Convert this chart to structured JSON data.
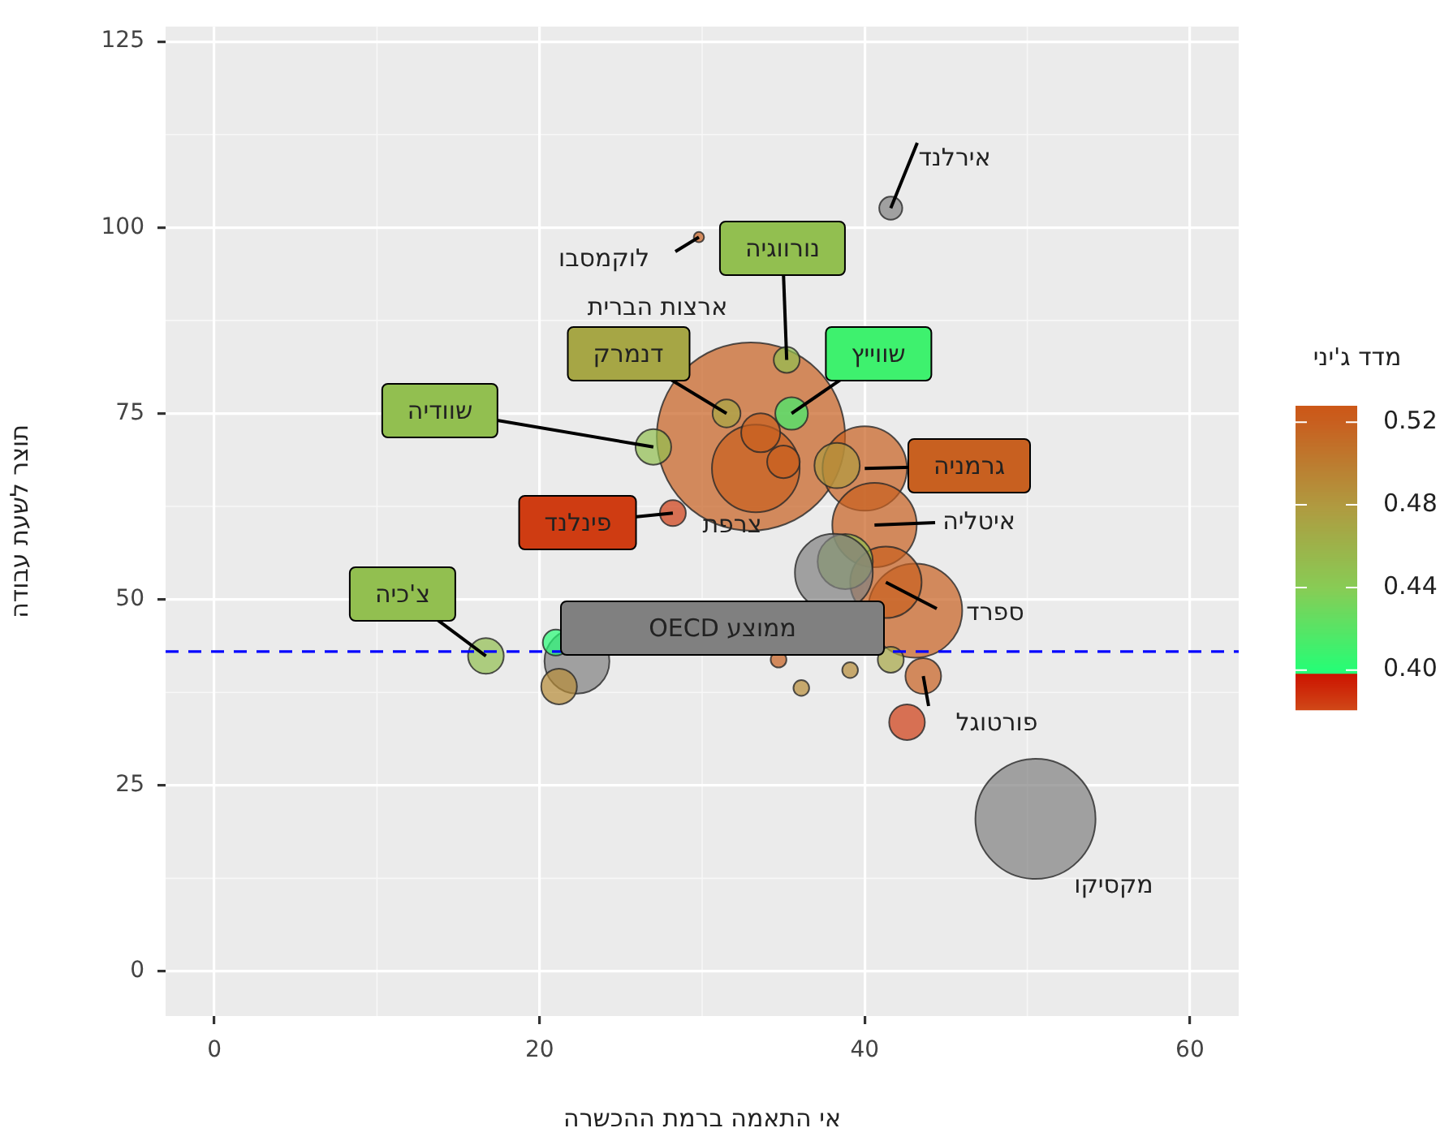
{
  "chart_data": {
    "type": "bubble",
    "xlabel": "אי התאמה ברמת ההכשרה",
    "ylabel": "תוצר לשעת עבודה",
    "clabel": "מדד ג'יני",
    "x": [
      50.5,
      33.0,
      43.1,
      33.3,
      40.0,
      40.6,
      41.3,
      22.3,
      38.8,
      38.3,
      38.1,
      33.6,
      27.0,
      16.7,
      21.2,
      43.6,
      42.6,
      35.5,
      35.0,
      31.5,
      35.2,
      28.2,
      21.0,
      41.6,
      41.6,
      34.7,
      36.1,
      39.1,
      29.8
    ],
    "values": [
      20.5,
      71.9,
      48.5,
      67.6,
      67.6,
      60.0,
      52.3,
      41.7,
      55.1,
      68.0,
      53.6,
      72.4,
      70.5,
      42.4,
      38.3,
      39.7,
      33.5,
      75.0,
      68.5,
      75.0,
      82.2,
      61.6,
      44.2,
      41.9,
      102.6,
      41.9,
      38.1,
      40.5,
      98.7
    ],
    "sizes": [
      0.407,
      1,
      0.25,
      0.217,
      0.201,
      0.201,
      0.144,
      0.119,
      0.086,
      0.058,
      0.171,
      0.043,
      0.036,
      0.036,
      0.036,
      0.036,
      0.036,
      0.03,
      0.03,
      0.022,
      0.019,
      0.019,
      0.019,
      0.019,
      0.015,
      0.007,
      0.007,
      0.007,
      0.003
    ],
    "cvalues": [
      null,
      0.52,
      0.52,
      0.52,
      0.52,
      0.52,
      0.52,
      null,
      0.45,
      0.48,
      null,
      0.52,
      0.45,
      0.45,
      0.49,
      0.52,
      0.385,
      0.41,
      0.52,
      0.47,
      0.45,
      0.385,
      0.4,
      0.47,
      null,
      0.52,
      0.49,
      0.49,
      0.52
    ],
    "clim": [
      0.381,
      0.528
    ],
    "cticks": [
      {
        "value": 0.4,
        "label": "0.40"
      },
      {
        "value": 0.44,
        "label": "0.44"
      },
      {
        "value": 0.48,
        "label": "0.48"
      },
      {
        "value": 0.52,
        "label": "0.52"
      }
    ],
    "xlim": [
      -3,
      63
    ],
    "xticks": [
      0,
      20,
      40,
      60
    ],
    "ylim": [
      -6,
      127
    ],
    "yticks": [
      0,
      25,
      50,
      75,
      100,
      125
    ],
    "grid": true,
    "ref_lines": [
      {
        "axis": "y",
        "value": 43,
        "color": "#0000ff",
        "line_style": "dashed"
      }
    ],
    "annotations": [
      {
        "text": "אירלנד",
        "x": 41.6,
        "y": 102.6
      },
      {
        "text": "לוקמסבו",
        "x": 29.8,
        "y": 98.7
      },
      {
        "text": "נורווגיה",
        "x": 35.2,
        "y": 82.2
      },
      "ארצות הברית",
      {
        "text": "דנמרק",
        "x": 31.5,
        "y": 75.0
      },
      {
        "text": "שווייץ",
        "x": 35.5,
        "y": 75.0
      },
      {
        "text": "שוודיה",
        "x": 27.0,
        "y": 70.5
      },
      {
        "text": "גרמניה",
        "x": 40.0,
        "y": 67.6
      },
      {
        "text": "איטליה",
        "x": 40.6,
        "y": 60.0
      },
      {
        "text": "פינלנד",
        "x": 28.2,
        "y": 61.6
      },
      {
        "text": "צרפת",
        "x": 33.3,
        "y": 67.6
      },
      "ממוצע OECD",
      {
        "text": "ספרד",
        "x": 41.3,
        "y": 52.3
      },
      {
        "text": "צ'כיה",
        "x": 16.7,
        "y": 42.4
      },
      {
        "text": "פורטוגל",
        "x": 43.6,
        "y": 39.7
      },
      {
        "text": "מקסיקו",
        "x": 50.5,
        "y": 20.5
      }
    ]
  }
}
